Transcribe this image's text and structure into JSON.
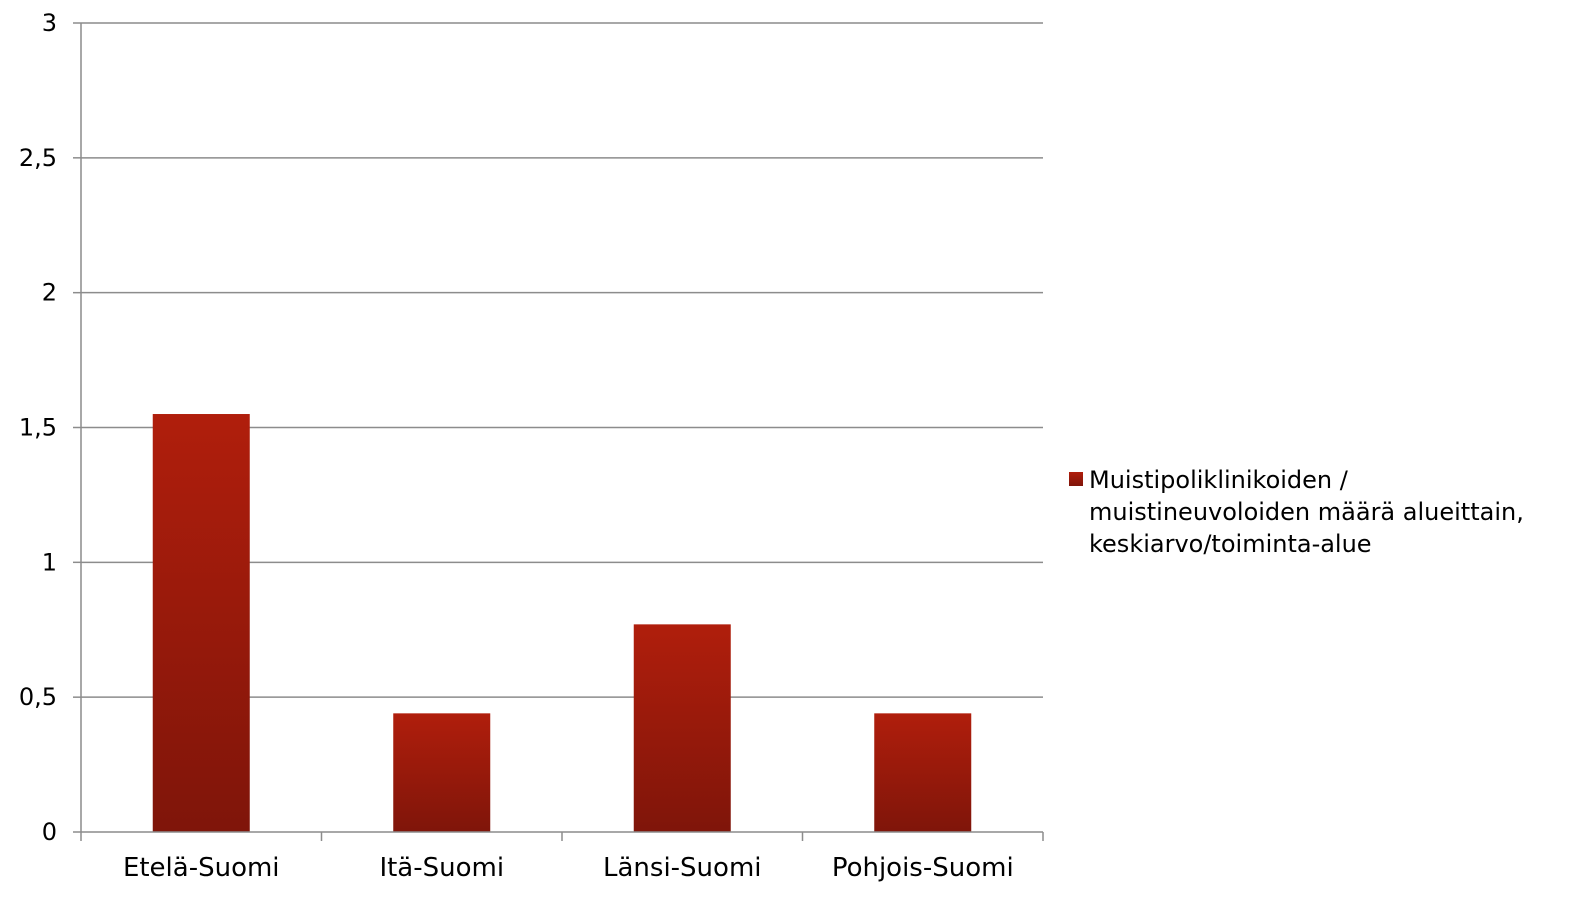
{
  "chart_data": {
    "type": "bar",
    "categories": [
      "Etelä-Suomi",
      "Itä-Suomi",
      "Länsi-Suomi",
      "Pohjois-Suomi"
    ],
    "series": [
      {
        "name": "Muistipoliklinikoiden / muistineuvoloiden määrä alueittain, keskiarvo/toiminta-alue",
        "values": [
          1.55,
          0.44,
          0.77,
          0.44
        ]
      }
    ],
    "ylim": [
      0,
      3
    ],
    "yticks": [
      {
        "value": 0,
        "label": "0"
      },
      {
        "value": 0.5,
        "label": "0,5"
      },
      {
        "value": 1,
        "label": "1"
      },
      {
        "value": 1.5,
        "label": "1,5"
      },
      {
        "value": 2,
        "label": "2"
      },
      {
        "value": 2.5,
        "label": "2,5"
      },
      {
        "value": 3,
        "label": "3"
      }
    ],
    "grid": true,
    "legend_position": "right",
    "legend_lines": [
      "Muistipoliklinikoiden /",
      "muistineuvoloiden määrä alueittain,",
      "keskiarvo/toiminta-alue"
    ],
    "colors": {
      "bar_top": "#b01e0c",
      "bar_bottom": "#7f150a",
      "grid": "#8c8c8c",
      "axis": "#8c8c8c"
    }
  }
}
